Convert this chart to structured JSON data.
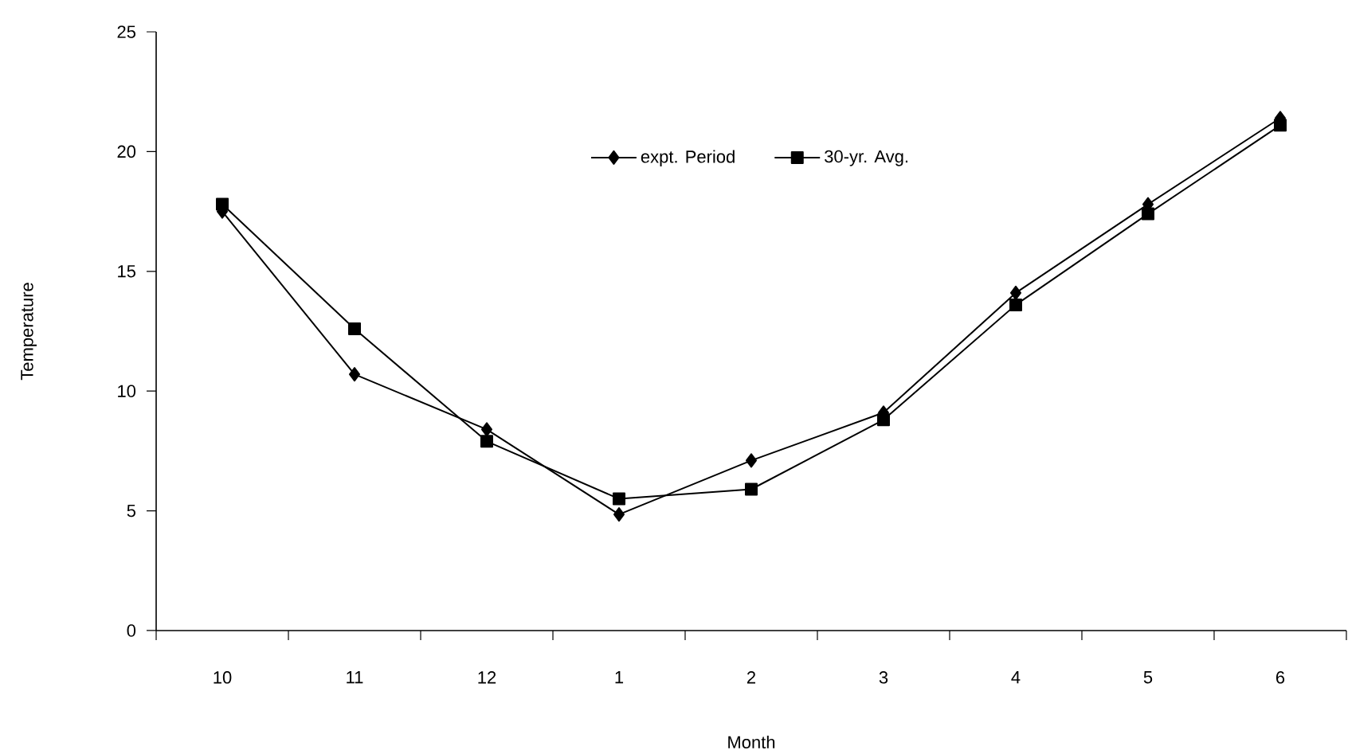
{
  "chart_data": {
    "type": "line",
    "xlabel": "Month",
    "ylabel": "Temperature",
    "categories": [
      "10",
      "11",
      "12",
      "1",
      "2",
      "3",
      "4",
      "5",
      "6"
    ],
    "series": [
      {
        "name": "expt. Period",
        "color": "#000000",
        "marker": "diamond",
        "values": [
          17.5,
          10.7,
          8.4,
          4.85,
          7.1,
          9.1,
          14.1,
          17.8,
          21.4
        ]
      },
      {
        "name": "30-yr. Avg.",
        "color": "#000000",
        "marker": "square",
        "values": [
          17.8,
          12.6,
          7.9,
          5.5,
          5.9,
          8.8,
          13.6,
          17.4,
          21.1
        ]
      }
    ],
    "ylim": [
      0,
      25
    ],
    "yticks": [
      0,
      5,
      10,
      15,
      20,
      25
    ],
    "grid": false,
    "legend": "top",
    "line_style": "solid"
  }
}
